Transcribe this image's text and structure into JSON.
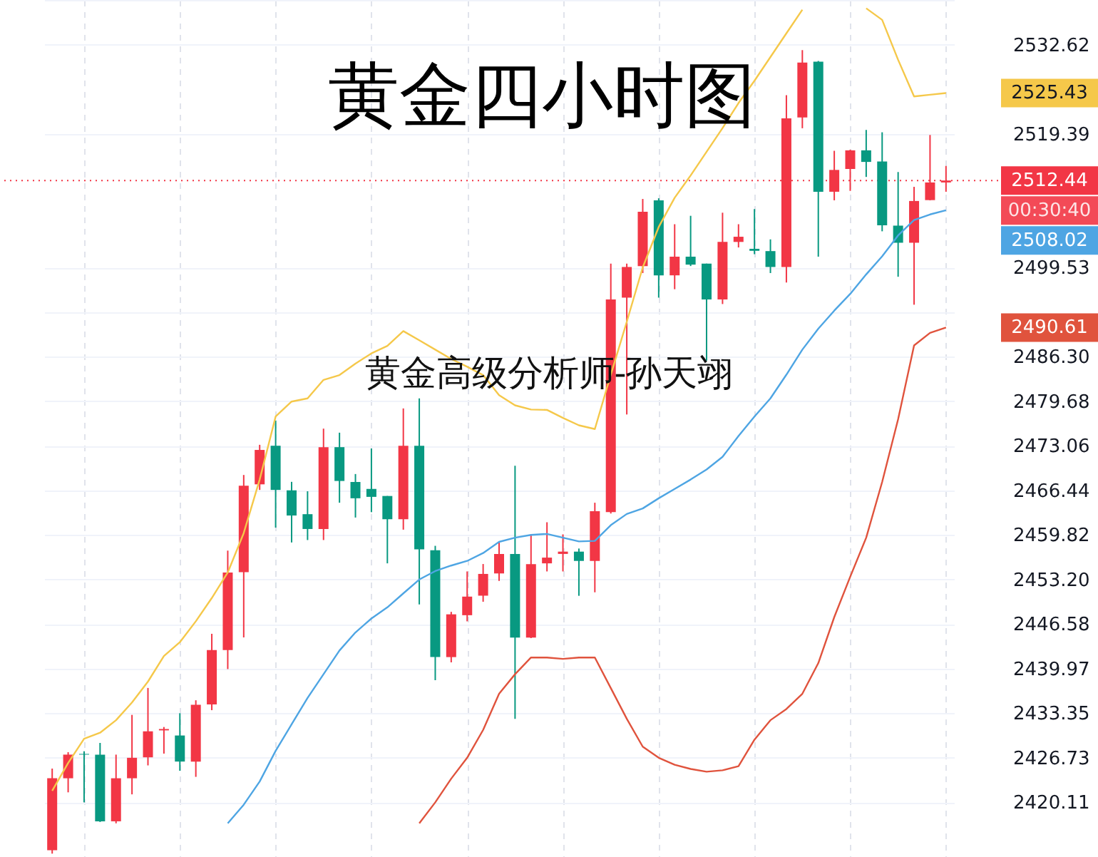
{
  "chart_data": {
    "type": "candlestick",
    "title": "黄金四小时图",
    "categories": [
      null,
      null,
      null,
      null,
      null,
      null,
      null,
      null,
      null,
      null,
      null,
      null,
      null,
      null,
      null,
      null,
      null,
      null,
      null,
      null,
      null,
      null,
      null,
      null,
      null,
      null,
      null,
      null,
      null,
      null,
      null,
      null,
      null,
      null,
      null,
      null,
      null,
      null,
      null,
      null,
      null,
      null,
      null,
      null,
      null,
      null,
      null,
      null,
      null,
      null,
      null,
      null,
      null,
      null,
      null,
      null,
      null
    ],
    "ohlc": [
      [
        2413,
        2425.13,
        2412.5,
        2423.69
      ],
      [
        2423.69,
        2427.56,
        2421.6,
        2427.2
      ],
      [
        2427.3,
        2427.7,
        2420.11,
        2427.2
      ],
      [
        2427.2,
        2428.94,
        2417.2,
        2417.3
      ],
      [
        2417.3,
        2427.2,
        2417.0,
        2423.69
      ],
      [
        2423.69,
        2433.1,
        2421.3,
        2426.73
      ],
      [
        2426.8,
        2437.1,
        2425.6,
        2430.66
      ],
      [
        2430.8,
        2431.3,
        2427.35,
        2431.0
      ],
      [
        2430.04,
        2433.35,
        2424.8,
        2426.17
      ],
      [
        2426.17,
        2435.27,
        2423.9,
        2434.59
      ],
      [
        2434.65,
        2445.14,
        2433.8,
        2442.72
      ],
      [
        2442.72,
        2457.49,
        2439.9,
        2454.24
      ],
      [
        2454.3,
        2468.72,
        2444.6,
        2467.13
      ],
      [
        2467.33,
        2473.2,
        2466.5,
        2472.44
      ],
      [
        2473.06,
        2476.8,
        2460.9,
        2466.5
      ],
      [
        2466.44,
        2467.7,
        2458.7,
        2462.7
      ],
      [
        2462.9,
        2466.3,
        2459.06,
        2460.7
      ],
      [
        2460.7,
        2475.6,
        2459.06,
        2472.85
      ],
      [
        2472.85,
        2475.0,
        2464.6,
        2467.83
      ],
      [
        2467.68,
        2468.86,
        2462.4,
        2465.26
      ],
      [
        2466.65,
        2472.65,
        2463.2,
        2465.47
      ],
      [
        2465.6,
        2465.6,
        2455.6,
        2462.15
      ],
      [
        2462.15,
        2478.6,
        2460.6,
        2473.06
      ],
      [
        2473.06,
        2480.1,
        2449.5,
        2457.69
      ],
      [
        2457.55,
        2458.2,
        2438.25,
        2441.68
      ],
      [
        2441.68,
        2448.4,
        2440.9,
        2448.03
      ],
      [
        2447.9,
        2454.4,
        2446.99,
        2450.66
      ],
      [
        2450.8,
        2455.5,
        2449.9,
        2454.03
      ],
      [
        2454.1,
        2458.7,
        2453.0,
        2456.99
      ],
      [
        2456.99,
        2470.1,
        2432.5,
        2444.58
      ],
      [
        2444.58,
        2459.9,
        2444.5,
        2455.48
      ],
      [
        2455.6,
        2461.7,
        2454.4,
        2456.45
      ],
      [
        2457.0,
        2459.9,
        2454.4,
        2457.34
      ],
      [
        2457.34,
        2457.8,
        2450.78,
        2455.96
      ],
      [
        2455.96,
        2464.6,
        2451.3,
        2463.34
      ],
      [
        2463.2,
        2500.1,
        2463.0,
        2494.78
      ],
      [
        2495.05,
        2500.1,
        2477.7,
        2499.6
      ],
      [
        2499.74,
        2509.7,
        2498.7,
        2507.8
      ],
      [
        2509.5,
        2509.8,
        2495.05,
        2498.36
      ],
      [
        2498.36,
        2505.95,
        2496.3,
        2501.13
      ],
      [
        2501.13,
        2507.2,
        2499.74,
        2499.95
      ],
      [
        2500.1,
        2500.1,
        2485.7,
        2494.78
      ],
      [
        2494.78,
        2507.66,
        2494.1,
        2503.32
      ],
      [
        2503.32,
        2505.95,
        2502.5,
        2504.09
      ],
      [
        2502.3,
        2508.2,
        2501.5,
        2502.0
      ],
      [
        2501.96,
        2503.7,
        2498.7,
        2499.6
      ],
      [
        2499.6,
        2525.12,
        2497.3,
        2521.67
      ],
      [
        2521.8,
        2531.8,
        2520.2,
        2529.94
      ],
      [
        2530.09,
        2530.2,
        2501.13,
        2510.77
      ],
      [
        2510.77,
        2516.85,
        2509.5,
        2514.01
      ],
      [
        2514.15,
        2517.0,
        2510.9,
        2516.92
      ],
      [
        2516.92,
        2519.95,
        2512.97,
        2515.2
      ],
      [
        2515.26,
        2519.6,
        2504.9,
        2505.8
      ],
      [
        2505.74,
        2513.7,
        2498.15,
        2503.2
      ],
      [
        2503.2,
        2511.5,
        2494.0,
        2509.4
      ],
      [
        2509.53,
        2519.2,
        2509.5,
        2512.15
      ],
      [
        2512.15,
        2514.6,
        2510.77,
        2512.44
      ]
    ],
    "colors": [
      "#f23645",
      "#f23645",
      "#089981",
      "#089981",
      "#f23645",
      "#f23645",
      "#f23645",
      "#f23645",
      "#089981",
      "#f23645",
      "#f23645",
      "#f23645",
      "#f23645",
      "#f23645",
      "#089981",
      "#089981",
      "#089981",
      "#f23645",
      "#089981",
      "#089981",
      "#089981",
      "#089981",
      "#f23645",
      "#089981",
      "#089981",
      "#f23645",
      "#f23645",
      "#f23645",
      "#f23645",
      "#089981",
      "#f23645",
      "#f23645",
      "#f23645",
      "#089981",
      "#f23645",
      "#f23645",
      "#f23645",
      "#f23645",
      "#089981",
      "#f23645",
      "#089981",
      "#089981",
      "#f23645",
      "#f23645",
      "#089981",
      "#089981",
      "#f23645",
      "#f23645",
      "#089981",
      "#f23645",
      "#f23645",
      "#089981",
      "#089981",
      "#089981",
      "#f23645",
      "#f23645",
      "#f23645"
    ],
    "series": [
      {
        "type": "line",
        "color": "#f5c84a",
        "values": [
          2421.83,
          2425.96,
          2429.56,
          2430.45,
          2432.31,
          2434.94,
          2438.04,
          2441.83,
          2443.9,
          2447.0,
          2450.45,
          2454.24,
          2460.09,
          2468.04,
          2477.4,
          2479.62,
          2480.09,
          2482.84,
          2483.55,
          2485.26,
          2486.77,
          2487.89,
          2490.08,
          2488.72,
          2487.33,
          2485.95,
          2484.79,
          2483.55,
          2480.57,
          2479.06,
          2478.44,
          2478.38,
          2477.2,
          2476.1,
          2475.54,
          2483.61,
          2491.47,
          2499.54,
          2505.53,
          2509.88,
          2513.19,
          2516.7,
          2520.22,
          2523.94,
          2527.25,
          2530.77,
          2534.29,
          2537.8,
          null,
          null,
          null,
          2538.01,
          2536.29,
          2530.36,
          2524.92,
          2525.18,
          2525.43
        ]
      },
      {
        "type": "line",
        "color": "#4ea5e3",
        "values": [
          null,
          null,
          null,
          null,
          null,
          null,
          null,
          null,
          null,
          null,
          null,
          2417.01,
          2419.76,
          2423.21,
          2427.76,
          2431.69,
          2435.62,
          2439.14,
          2442.66,
          2445.34,
          2447.41,
          2449.07,
          2451.14,
          2453.2,
          2454.45,
          2455.27,
          2455.96,
          2457.13,
          2458.79,
          2459.41,
          2459.82,
          2459.97,
          2459.41,
          2458.85,
          2458.93,
          2461.27,
          2462.93,
          2463.75,
          2465.26,
          2466.65,
          2468.04,
          2469.54,
          2471.41,
          2474.51,
          2477.4,
          2480.09,
          2483.61,
          2487.33,
          2490.44,
          2493.12,
          2495.61,
          2498.5,
          2501.19,
          2504.29,
          2506.57,
          2507.4,
          2508.02
        ]
      },
      {
        "type": "line",
        "color": "#e0533d",
        "values": [
          null,
          null,
          null,
          null,
          null,
          null,
          null,
          null,
          null,
          null,
          null,
          null,
          null,
          null,
          null,
          null,
          null,
          null,
          null,
          null,
          null,
          null,
          null,
          2417.0,
          2420.11,
          2423.63,
          2426.73,
          2430.87,
          2436.24,
          2439.14,
          2441.62,
          2441.62,
          2441.41,
          2441.62,
          2441.62,
          2437.07,
          2432.52,
          2428.38,
          2426.73,
          2425.69,
          2425.07,
          2424.66,
          2424.87,
          2425.49,
          2429.42,
          2432.31,
          2433.97,
          2436.24,
          2440.79,
          2447.62,
          2453.62,
          2459.41,
          2467.68,
          2476.99,
          2487.95,
          2489.82,
          2490.61
        ]
      }
    ],
    "ylim": [
      2412,
      2539.24
    ],
    "yticks": [
      2420.11,
      2426.73,
      2433.35,
      2439.97,
      2446.58,
      {
        "value": 2453.2,
        "label": "2453.20"
      },
      2459.82,
      2466.44,
      2473.06,
      2479.68,
      {
        "value": 2486.3,
        "label": "2486.30"
      },
      {
        "value": 2492.91,
        "label": null
      },
      2499.53,
      2519.39,
      2532.62,
      {
        "value": 2539.24,
        "label": null
      }
    ],
    "grid": true,
    "ref_lines": [
      {
        "axis": "y",
        "value": 2512.44,
        "label": "2512.44",
        "color": "#f23645",
        "line_style": "dotted"
      }
    ],
    "annotations": [
      "2525.43",
      "2508.02",
      "2490.61",
      "00:30:40",
      "黄金高级分析师-孙天翊"
    ]
  }
}
